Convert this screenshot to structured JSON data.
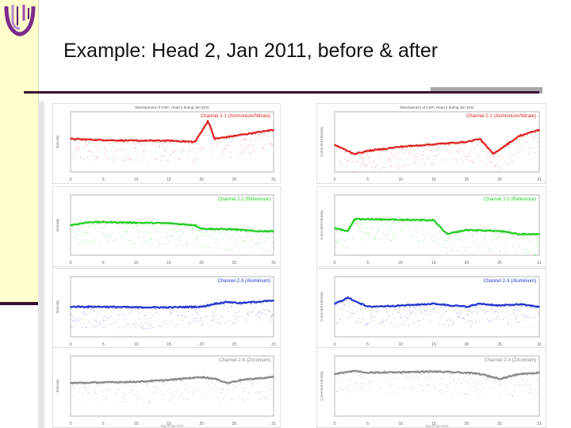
{
  "slide": {
    "title": "Example: Head 2, Jan 2011, before & after",
    "colors": {
      "sidebar": "#ffffcc",
      "accent_dark": "#3a0f2f",
      "accent_grey": "#a7a7a7",
      "logo_purple": "#7b2a8c"
    }
  },
  "logo": {
    "icon": "university-logo-icon"
  },
  "left_column": {
    "panels": [
      {
        "title": "Development of CWA: Head 2 during Jan 2011",
        "legend": "Channel 2-1 (Ammonium/Nitrate)",
        "color": "#dd2222",
        "x_ticks": [
          "0",
          "5",
          "10",
          "15",
          "20",
          "25",
          "31"
        ],
        "ylabel": "Intensity"
      },
      {
        "title": "",
        "legend": "Channel 2-2 (Reference)",
        "color": "#22cc22",
        "x_ticks": [
          "0",
          "5",
          "10",
          "15",
          "20",
          "25",
          "31"
        ],
        "ylabel": "Intensity"
      },
      {
        "title": "",
        "legend": "Channel 2-3 (Aluminium)",
        "color": "#2233cc",
        "x_ticks": [
          "0",
          "5",
          "10",
          "15",
          "20",
          "25",
          "31"
        ],
        "ylabel": "Intensity"
      },
      {
        "title": "",
        "legend": "Channel 2-4 (Zirconium)",
        "color": "#888888",
        "x_ticks": [
          "0",
          "5",
          "10",
          "15",
          "20",
          "25",
          "31"
        ],
        "ylabel": "Intensity",
        "xlabel": "Day of Jan 2011"
      }
    ]
  },
  "right_column": {
    "panels": [
      {
        "title": "Development of CWA: Head 2 during Jan 2011",
        "legend": "Channel 2-1 (Ammonium/Nitrate)",
        "color": "#dd2222",
        "x_ticks": [
          "0",
          "5",
          "10",
          "15",
          "20",
          "25",
          "31"
        ],
        "ylabel": "Corrected Intensity"
      },
      {
        "title": "",
        "legend": "Channel 2-2 (Reference)",
        "color": "#22cc22",
        "x_ticks": [
          "0",
          "5",
          "10",
          "15",
          "20",
          "25",
          "31"
        ],
        "ylabel": "Corrected Intensity"
      },
      {
        "title": "",
        "legend": "Channel 2-3 (Aluminium)",
        "color": "#2233cc",
        "x_ticks": [
          "0",
          "5",
          "10",
          "15",
          "20",
          "25",
          "31"
        ],
        "ylabel": "Corrected Intensity"
      },
      {
        "title": "",
        "legend": "Channel 2-4 (Zirconium)",
        "color": "#888888",
        "x_ticks": [
          "0",
          "5",
          "10",
          "15",
          "20",
          "25",
          "31"
        ],
        "ylabel": "Corrected Intensity",
        "xlabel": "Day of Jan 2011"
      }
    ]
  },
  "chart_data": [
    {
      "type": "scatter",
      "panel": "left-1",
      "series": [
        {
          "name": "Channel 2-1 (Ammonium/Nitrate)",
          "x": [
            0,
            5,
            10,
            15,
            19,
            21,
            22,
            25,
            28,
            31
          ],
          "y": [
            0.55,
            0.53,
            0.52,
            0.52,
            0.5,
            0.85,
            0.55,
            0.6,
            0.65,
            0.7
          ]
        }
      ],
      "xlim": [
        0,
        31
      ],
      "ylim": [
        0,
        1
      ]
    },
    {
      "type": "scatter",
      "panel": "left-2",
      "series": [
        {
          "name": "Channel 2-2 (Reference)",
          "x": [
            0,
            3,
            5,
            10,
            15,
            19,
            20,
            25,
            28,
            31
          ],
          "y": [
            0.5,
            0.55,
            0.55,
            0.54,
            0.53,
            0.5,
            0.44,
            0.43,
            0.4,
            0.4
          ]
        }
      ],
      "xlim": [
        0,
        31
      ],
      "ylim": [
        0,
        1
      ]
    },
    {
      "type": "scatter",
      "panel": "left-3",
      "series": [
        {
          "name": "Channel 2-3 (Aluminium)",
          "x": [
            0,
            5,
            10,
            15,
            20,
            22,
            24,
            26,
            28,
            31
          ],
          "y": [
            0.5,
            0.5,
            0.49,
            0.49,
            0.5,
            0.55,
            0.58,
            0.56,
            0.58,
            0.6
          ]
        }
      ],
      "xlim": [
        0,
        31
      ],
      "ylim": [
        0,
        1
      ]
    },
    {
      "type": "scatter",
      "panel": "left-4",
      "series": [
        {
          "name": "Channel 2-4 (Zirconium)",
          "x": [
            0,
            5,
            10,
            15,
            20,
            22,
            24,
            26,
            28,
            31
          ],
          "y": [
            0.55,
            0.56,
            0.57,
            0.6,
            0.65,
            0.62,
            0.55,
            0.6,
            0.62,
            0.65
          ]
        }
      ],
      "xlim": [
        0,
        31
      ],
      "ylim": [
        0,
        1
      ]
    },
    {
      "type": "scatter",
      "panel": "right-1",
      "series": [
        {
          "name": "Channel 2-1 (Ammonium/Nitrate)",
          "x": [
            0,
            3,
            5,
            10,
            15,
            20,
            22,
            24,
            26,
            28,
            31
          ],
          "y": [
            0.45,
            0.3,
            0.35,
            0.42,
            0.46,
            0.5,
            0.55,
            0.3,
            0.45,
            0.6,
            0.7
          ]
        }
      ],
      "xlim": [
        0,
        31
      ],
      "ylim": [
        0,
        1
      ]
    },
    {
      "type": "scatter",
      "panel": "right-2",
      "series": [
        {
          "name": "Channel 2-2 (Reference)",
          "x": [
            0,
            2,
            3,
            5,
            10,
            15,
            17,
            20,
            25,
            28,
            31
          ],
          "y": [
            0.45,
            0.4,
            0.6,
            0.6,
            0.59,
            0.58,
            0.35,
            0.42,
            0.4,
            0.35,
            0.35
          ]
        }
      ],
      "xlim": [
        0,
        31
      ],
      "ylim": [
        0,
        1
      ]
    },
    {
      "type": "scatter",
      "panel": "right-3",
      "series": [
        {
          "name": "Channel 2-3 (Aluminium)",
          "x": [
            0,
            2,
            5,
            10,
            15,
            20,
            22,
            25,
            28,
            31
          ],
          "y": [
            0.55,
            0.65,
            0.5,
            0.52,
            0.55,
            0.5,
            0.55,
            0.52,
            0.54,
            0.5
          ]
        }
      ],
      "xlim": [
        0,
        31
      ],
      "ylim": [
        0,
        1
      ]
    },
    {
      "type": "scatter",
      "panel": "right-4",
      "series": [
        {
          "name": "Channel 2-4 (Zirconium)",
          "x": [
            0,
            3,
            5,
            10,
            15,
            20,
            22,
            25,
            28,
            31
          ],
          "y": [
            0.7,
            0.75,
            0.72,
            0.73,
            0.74,
            0.72,
            0.7,
            0.62,
            0.7,
            0.72
          ]
        }
      ],
      "xlim": [
        0,
        31
      ],
      "ylim": [
        0,
        1
      ]
    }
  ]
}
